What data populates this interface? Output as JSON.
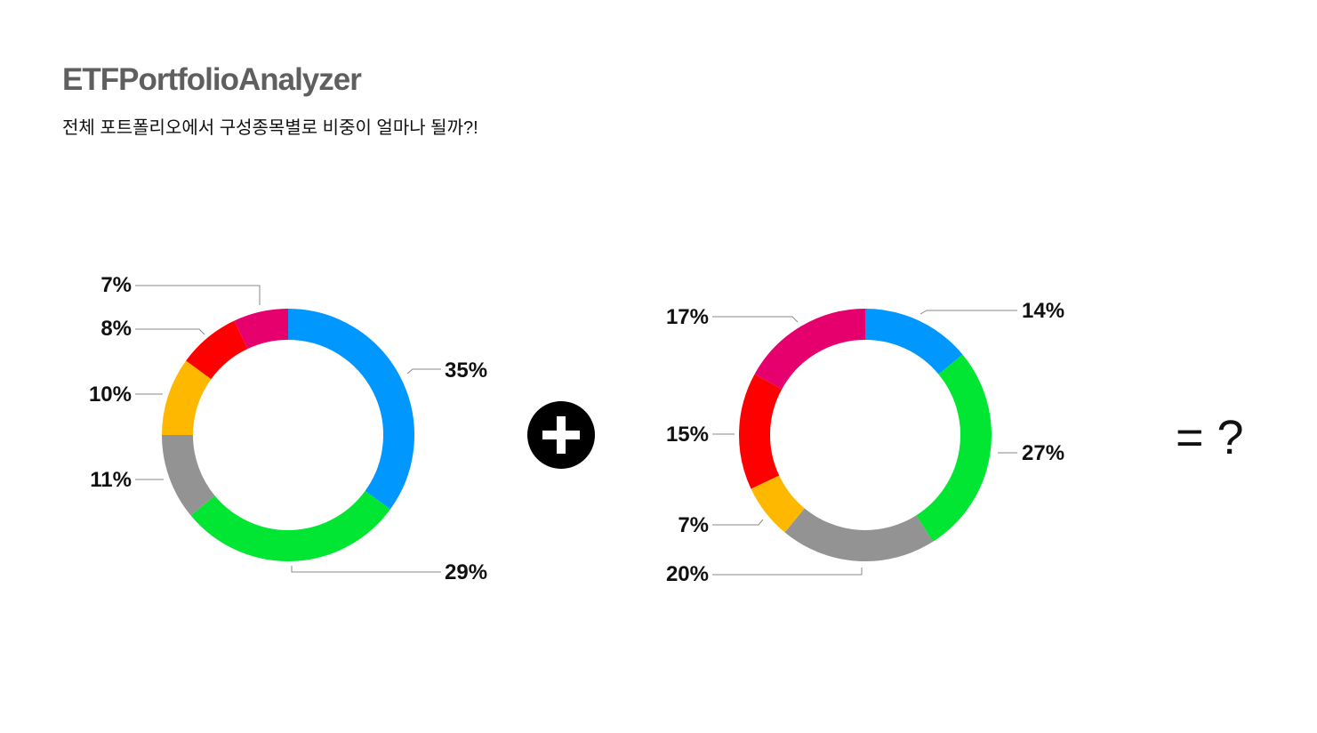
{
  "header": {
    "title": "ETFPortfolioAnalyzer",
    "subtitle": "전체 포트폴리오에서 구성종목별로 비중이 얼마나 될까?!"
  },
  "operators": {
    "plus_icon": "plus-circle-icon",
    "equals_text": "= ?"
  },
  "chart_data": [
    {
      "type": "pie",
      "variant": "donut",
      "slices": [
        {
          "label": "35%",
          "value": 35,
          "color": "#0097FF"
        },
        {
          "label": "29%",
          "value": 29,
          "color": "#00E632"
        },
        {
          "label": "11%",
          "value": 11,
          "color": "#939393"
        },
        {
          "label": "10%",
          "value": 10,
          "color": "#FFB800"
        },
        {
          "label": "8%",
          "value": 8,
          "color": "#FF0000"
        },
        {
          "label": "7%",
          "value": 7,
          "color": "#E5006E"
        }
      ]
    },
    {
      "type": "pie",
      "variant": "donut",
      "slices": [
        {
          "label": "14%",
          "value": 14,
          "color": "#0097FF"
        },
        {
          "label": "27%",
          "value": 27,
          "color": "#00E632"
        },
        {
          "label": "20%",
          "value": 20,
          "color": "#939393"
        },
        {
          "label": "7%",
          "value": 7,
          "color": "#FFB800"
        },
        {
          "label": "15%",
          "value": 15,
          "color": "#FF0000"
        },
        {
          "label": "17%",
          "value": 17,
          "color": "#E5006E"
        }
      ]
    }
  ]
}
